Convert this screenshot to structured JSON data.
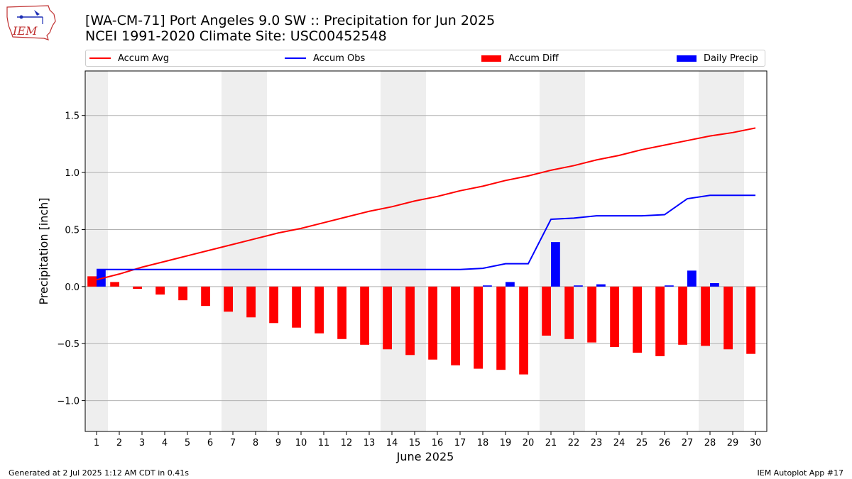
{
  "logo": {
    "text": "IEM"
  },
  "title": {
    "line1": "[WA-CM-71] Port Angeles 9.0 SW :: Precipitation for Jun 2025",
    "line2": "NCEI 1991-2020 Climate Site: USC00452548"
  },
  "footer": {
    "left": "Generated at 2 Jul 2025 1:12 AM CDT in 0.41s",
    "right": "IEM Autoplot App #17"
  },
  "colors": {
    "avg": "#ff0000",
    "obs": "#0000ff",
    "diff": "#ff0000",
    "daily": "#0000ff",
    "weekend": "#eeeeee",
    "grid": "#b0b0b0"
  },
  "chart_data": {
    "type": "bar",
    "xlabel": "June 2025",
    "ylabel": "Precipitation [inch]",
    "ylim": [
      -1.27,
      1.89
    ],
    "xlim": [
      0.5,
      30.5
    ],
    "yticks": [
      -1.0,
      -0.5,
      0.0,
      0.5,
      1.0,
      1.5
    ],
    "ytick_labels": [
      "−1.0",
      "−0.5",
      "0.0",
      "0.5",
      "1.0",
      "1.5"
    ],
    "grid": true,
    "legend_position": "top",
    "weekend_days": [
      1,
      7,
      8,
      14,
      15,
      21,
      22,
      28,
      29
    ],
    "days": [
      1,
      2,
      3,
      4,
      5,
      6,
      7,
      8,
      9,
      10,
      11,
      12,
      13,
      14,
      15,
      16,
      17,
      18,
      19,
      20,
      21,
      22,
      23,
      24,
      25,
      26,
      27,
      28,
      29,
      30
    ],
    "day_labels": [
      "1",
      "2",
      "3",
      "4",
      "5",
      "6",
      "7",
      "8",
      "9",
      "10",
      "11",
      "12",
      "13",
      "14",
      "15",
      "16",
      "17",
      "18",
      "19",
      "20",
      "21",
      "22",
      "23",
      "24",
      "25",
      "26",
      "27",
      "28",
      "29",
      "30"
    ],
    "series": [
      {
        "name": "Accum Avg",
        "kind": "line",
        "values": [
          0.06,
          0.11,
          0.17,
          0.22,
          0.27,
          0.32,
          0.37,
          0.42,
          0.47,
          0.51,
          0.56,
          0.61,
          0.66,
          0.7,
          0.75,
          0.79,
          0.84,
          0.88,
          0.93,
          0.97,
          1.02,
          1.06,
          1.11,
          1.15,
          1.2,
          1.24,
          1.28,
          1.32,
          1.35,
          1.39
        ]
      },
      {
        "name": "Accum Obs",
        "kind": "line",
        "values": [
          0.15,
          0.15,
          0.15,
          0.15,
          0.15,
          0.15,
          0.15,
          0.15,
          0.15,
          0.15,
          0.15,
          0.15,
          0.15,
          0.15,
          0.15,
          0.15,
          0.15,
          0.16,
          0.2,
          0.2,
          0.59,
          0.6,
          0.62,
          0.62,
          0.62,
          0.63,
          0.77,
          0.8,
          0.8,
          0.8
        ]
      },
      {
        "name": "Accum Diff",
        "kind": "bar",
        "values": [
          0.09,
          0.04,
          -0.02,
          -0.07,
          -0.12,
          -0.17,
          -0.22,
          -0.27,
          -0.32,
          -0.36,
          -0.41,
          -0.46,
          -0.51,
          -0.55,
          -0.6,
          -0.64,
          -0.69,
          -0.72,
          -0.73,
          -0.77,
          -0.43,
          -0.46,
          -0.49,
          -0.53,
          -0.58,
          -0.61,
          -0.51,
          -0.52,
          -0.55,
          -0.59
        ]
      },
      {
        "name": "Daily Precip",
        "kind": "bar",
        "values": [
          0.15,
          0,
          0,
          0,
          0,
          0,
          0,
          0,
          0,
          0,
          0,
          0,
          0,
          0,
          0,
          0,
          0,
          0.01,
          0.04,
          0,
          0.39,
          0.01,
          0.02,
          0,
          0,
          0.01,
          0.14,
          0.03,
          0,
          0
        ]
      }
    ]
  }
}
